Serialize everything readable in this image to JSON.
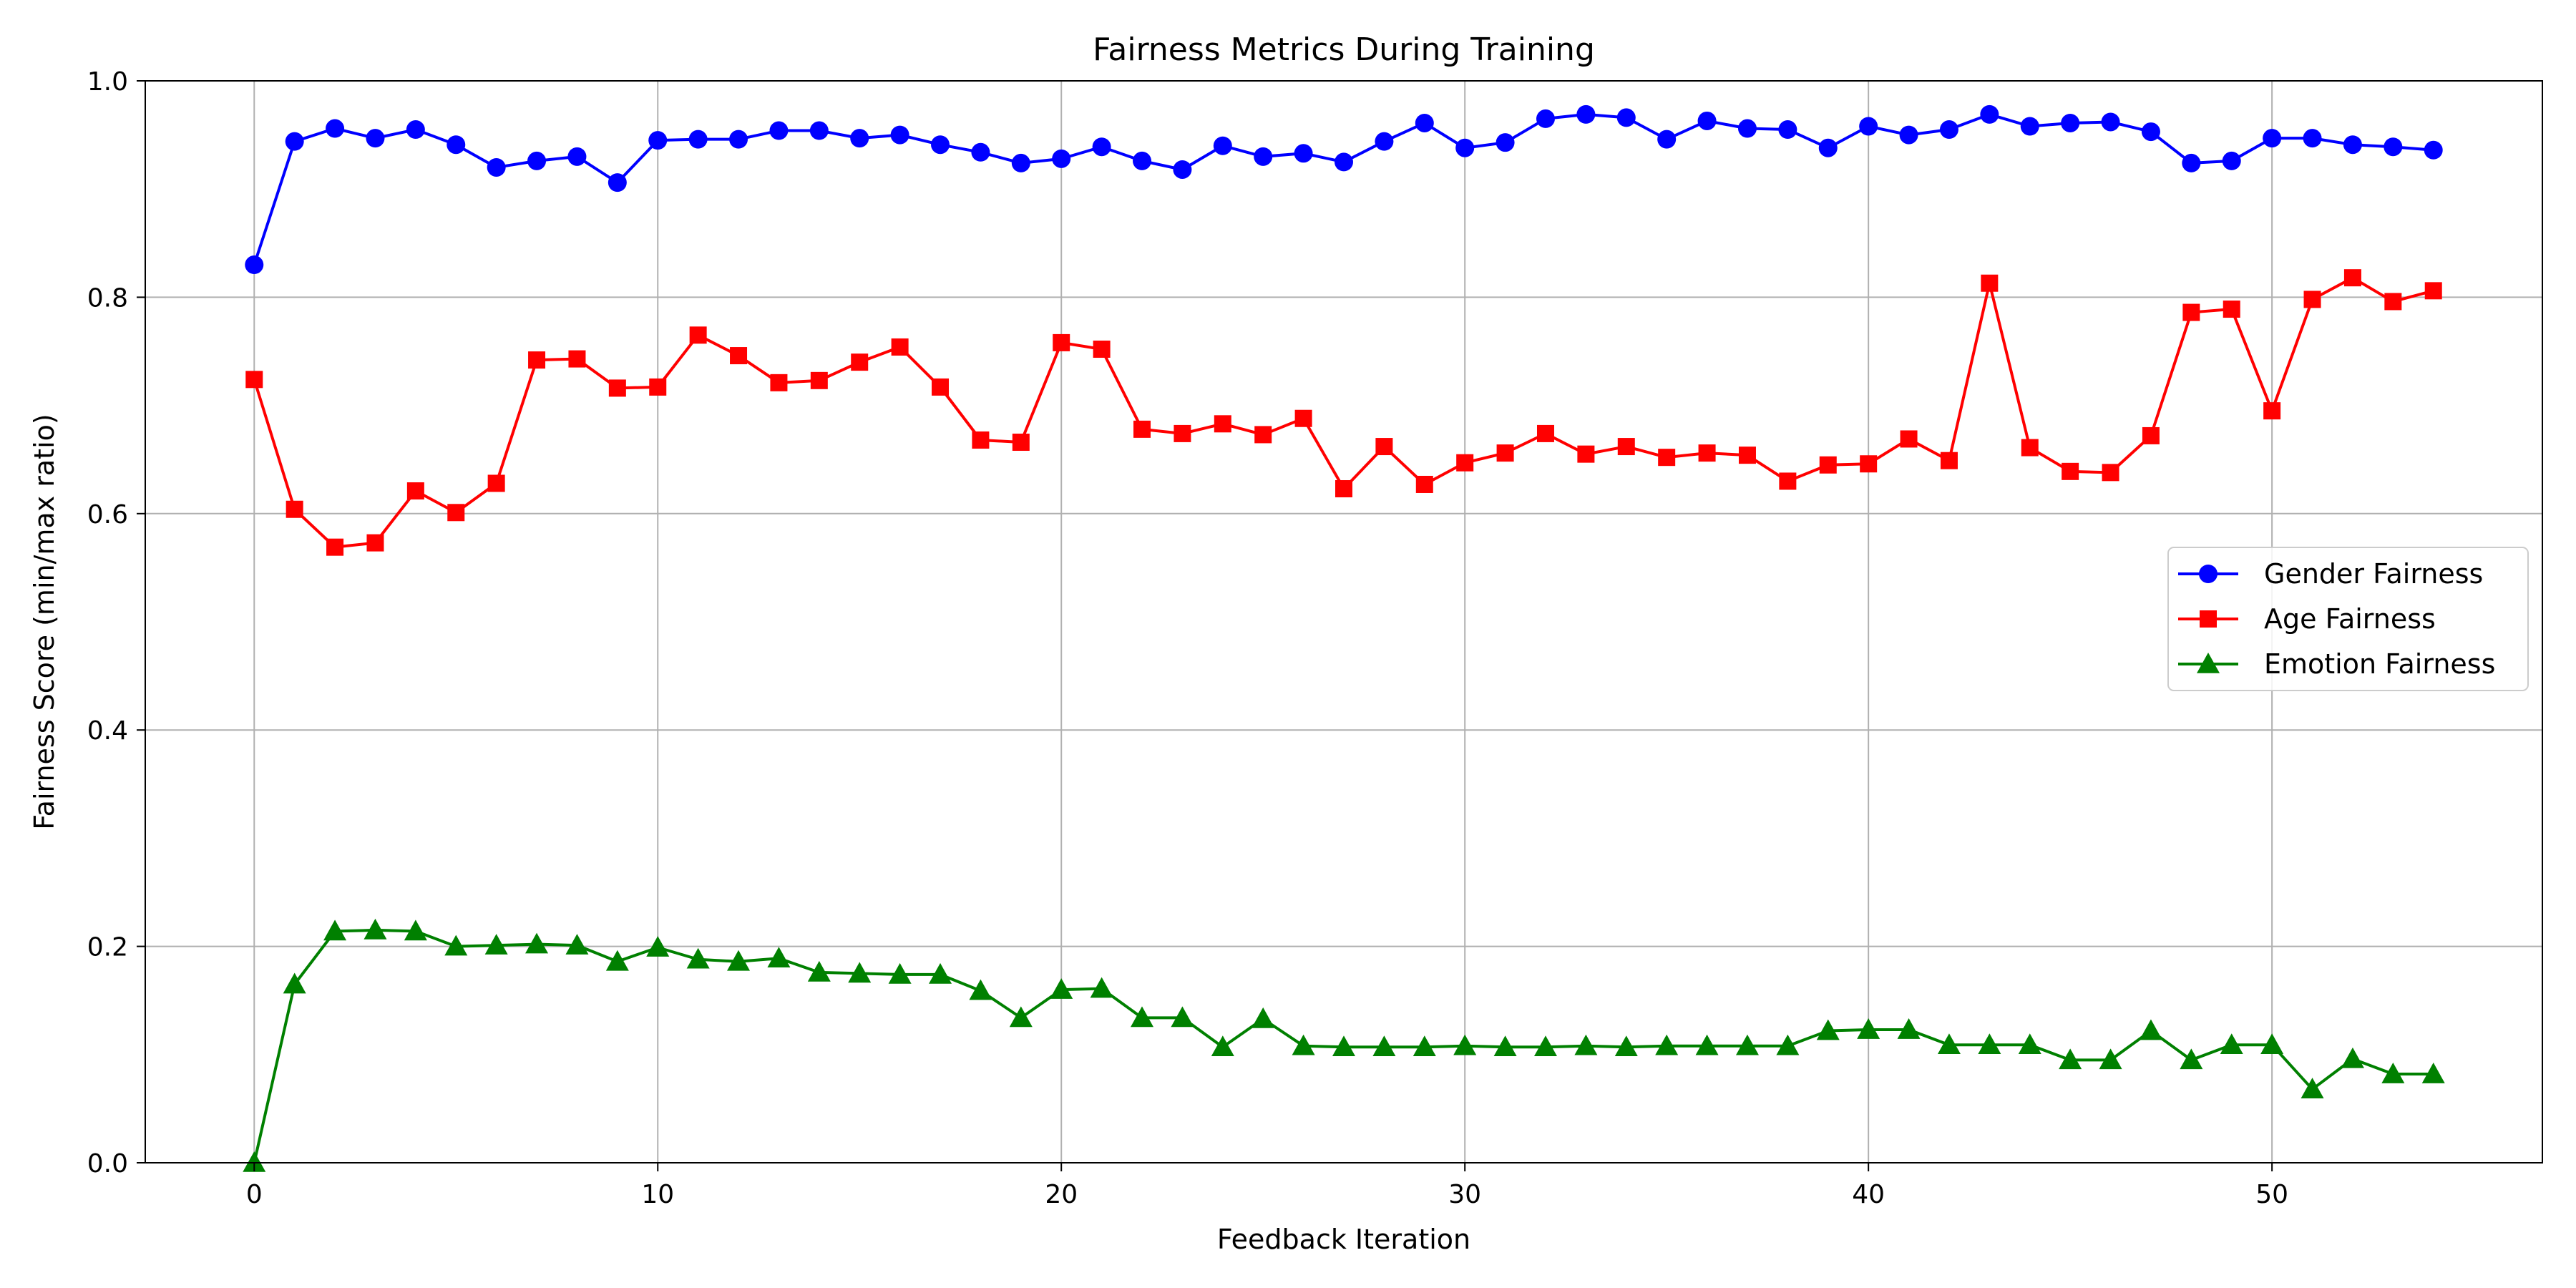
{
  "chart_data": {
    "type": "line",
    "title": "Fairness Metrics During Training",
    "xlabel": "Feedback Iteration",
    "ylabel": "Fairness Score (min/max ratio)",
    "xlim": [
      -2.7,
      56.7
    ],
    "ylim": [
      0.0,
      1.0
    ],
    "xticks": [
      0,
      10,
      20,
      30,
      40,
      50
    ],
    "yticks": [
      0.0,
      0.2,
      0.4,
      0.6,
      0.8,
      1.0
    ],
    "xtick_labels": [
      "0",
      "10",
      "20",
      "30",
      "40",
      "50"
    ],
    "ytick_labels": [
      "0.0",
      "0.2",
      "0.4",
      "0.6",
      "0.8",
      "1.0"
    ],
    "grid": true,
    "legend_position": "center-right",
    "x": [
      0,
      1,
      2,
      3,
      4,
      5,
      6,
      7,
      8,
      9,
      10,
      11,
      12,
      13,
      14,
      15,
      16,
      17,
      18,
      19,
      20,
      21,
      22,
      23,
      24,
      25,
      26,
      27,
      28,
      29,
      30,
      31,
      32,
      33,
      34,
      35,
      36,
      37,
      38,
      39,
      40,
      41,
      42,
      43,
      44,
      45,
      46,
      47,
      48,
      49,
      50,
      51,
      52,
      53,
      54
    ],
    "series": [
      {
        "name": "Gender Fairness",
        "color": "#0000ff",
        "marker": "circle",
        "values": [
          0.83,
          0.944,
          0.956,
          0.947,
          0.955,
          0.941,
          0.92,
          0.926,
          0.93,
          0.906,
          0.945,
          0.946,
          0.946,
          0.954,
          0.954,
          0.947,
          0.95,
          0.941,
          0.934,
          0.924,
          0.928,
          0.939,
          0.926,
          0.918,
          0.94,
          0.93,
          0.933,
          0.925,
          0.944,
          0.961,
          0.938,
          0.943,
          0.965,
          0.969,
          0.966,
          0.946,
          0.963,
          0.956,
          0.955,
          0.938,
          0.958,
          0.95,
          0.955,
          0.969,
          0.958,
          0.961,
          0.962,
          0.953,
          0.924,
          0.926,
          0.947,
          0.947,
          0.941,
          0.939,
          0.936
        ]
      },
      {
        "name": "Age Fairness",
        "color": "#ff0000",
        "marker": "square",
        "values": [
          0.724,
          0.604,
          0.569,
          0.573,
          0.621,
          0.601,
          0.628,
          0.742,
          0.743,
          0.716,
          0.717,
          0.765,
          0.746,
          0.721,
          0.723,
          0.74,
          0.754,
          0.717,
          0.668,
          0.666,
          0.758,
          0.752,
          0.678,
          0.674,
          0.683,
          0.673,
          0.688,
          0.623,
          0.662,
          0.627,
          0.647,
          0.656,
          0.674,
          0.655,
          0.662,
          0.652,
          0.656,
          0.654,
          0.63,
          0.645,
          0.646,
          0.669,
          0.649,
          0.813,
          0.661,
          0.639,
          0.638,
          0.672,
          0.786,
          0.789,
          0.695,
          0.798,
          0.818,
          0.796,
          0.806
        ]
      },
      {
        "name": "Emotion Fairness",
        "color": "#008000",
        "marker": "triangle",
        "values": [
          0.0,
          0.165,
          0.214,
          0.215,
          0.214,
          0.2,
          0.201,
          0.202,
          0.201,
          0.186,
          0.199,
          0.188,
          0.186,
          0.189,
          0.176,
          0.175,
          0.174,
          0.174,
          0.159,
          0.134,
          0.16,
          0.161,
          0.134,
          0.134,
          0.107,
          0.133,
          0.108,
          0.107,
          0.107,
          0.107,
          0.108,
          0.107,
          0.107,
          0.108,
          0.107,
          0.108,
          0.108,
          0.108,
          0.108,
          0.122,
          0.123,
          0.123,
          0.109,
          0.109,
          0.109,
          0.095,
          0.095,
          0.122,
          0.095,
          0.109,
          0.109,
          0.068,
          0.096,
          0.082,
          0.082
        ]
      }
    ]
  }
}
